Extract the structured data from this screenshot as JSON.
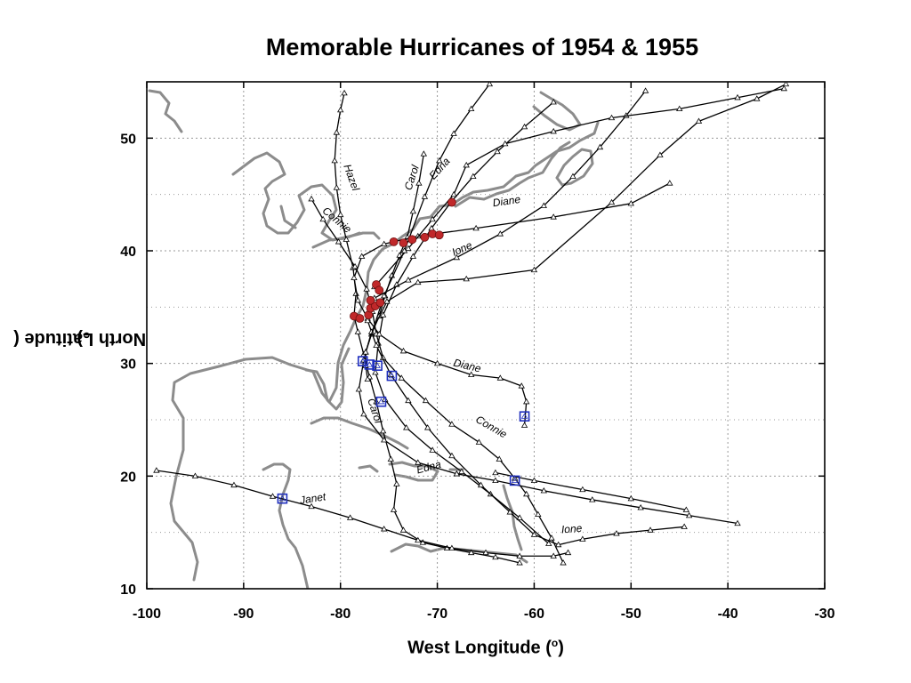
{
  "chart_data": {
    "type": "line",
    "title": "Memorable Hurricanes of 1954 & 1955",
    "xlabel_text": "West Longitude (",
    "xlabel_sup": "o",
    "xlabel_tail": ")",
    "ylabel_text": "North Latitude (",
    "ylabel_sup": "o",
    "ylabel_tail": ")",
    "xlim": [
      -100,
      -30
    ],
    "ylim": [
      10,
      55
    ],
    "x_ticks": [
      -100,
      -90,
      -80,
      -70,
      -60,
      -50,
      -40,
      -30
    ],
    "y_ticks": [
      10,
      20,
      30,
      40,
      50
    ],
    "grid": true,
    "colors": {
      "track": "#000000",
      "coast": "#8c8c8c",
      "landfall": "#c0282a",
      "origin": "#1f2fbf",
      "grid": "#9a9a9a"
    },
    "series": [
      {
        "name": "Hazel",
        "label_pos": [
          -79.2,
          46.4
        ],
        "label_rot": 70,
        "points": [
          [
            -61.5,
            12.3
          ],
          [
            -64,
            12.8
          ],
          [
            -66.5,
            13.2
          ],
          [
            -69,
            13.6
          ],
          [
            -71.5,
            14.1
          ],
          [
            -73.5,
            15.2
          ],
          [
            -74.5,
            17
          ],
          [
            -74.2,
            19.3
          ],
          [
            -74.8,
            21.5
          ],
          [
            -75.6,
            24
          ],
          [
            -76.3,
            26.6
          ],
          [
            -77,
            28.8
          ],
          [
            -77.6,
            30.8
          ],
          [
            -78.2,
            32.8
          ],
          [
            -78.6,
            34.2
          ],
          [
            -78.4,
            36.2
          ],
          [
            -78.7,
            38.5
          ],
          [
            -79.4,
            41
          ],
          [
            -80,
            43.2
          ],
          [
            -80.4,
            45.6
          ],
          [
            -80.6,
            48
          ],
          [
            -80.4,
            50.5
          ],
          [
            -80,
            52.5
          ],
          [
            -79.6,
            54
          ]
        ]
      },
      {
        "name": "Carol",
        "label_pos": [
          -72.3,
          46.4
        ],
        "label_rot": -72,
        "points": [
          [
            -77.2,
            28.6
          ],
          [
            -77.4,
            29.8
          ],
          [
            -77.4,
            31
          ],
          [
            -76.8,
            32.6
          ],
          [
            -76,
            34.2
          ],
          [
            -75.4,
            36
          ],
          [
            -74.7,
            37.8
          ],
          [
            -73.9,
            39.6
          ],
          [
            -73.1,
            41.2
          ],
          [
            -72.5,
            43.5
          ],
          [
            -71.9,
            46
          ],
          [
            -71.4,
            48.6
          ]
        ]
      },
      {
        "name": "Carol",
        "label_pos": [
          -76.8,
          25.7
        ],
        "label_rot": 72,
        "points": []
      },
      {
        "name": "Edna",
        "label_pos": [
          -69.5,
          47.1
        ],
        "label_rot": -48,
        "points": [
          [
            -58.5,
            14
          ],
          [
            -61.5,
            16.3
          ],
          [
            -64.5,
            18.4
          ],
          [
            -67.5,
            20.4
          ],
          [
            -70.5,
            22.3
          ],
          [
            -73.2,
            24.3
          ],
          [
            -75.4,
            26.8
          ],
          [
            -76.4,
            29.2
          ],
          [
            -76.1,
            31.8
          ],
          [
            -75.6,
            34.3
          ],
          [
            -74.2,
            37
          ],
          [
            -72.5,
            39.5
          ],
          [
            -70.6,
            42
          ],
          [
            -68.6,
            44.3
          ],
          [
            -66.3,
            46.6
          ],
          [
            -63.8,
            48.8
          ],
          [
            -61,
            51
          ],
          [
            -58,
            53.2
          ]
        ]
      },
      {
        "name": "Edna",
        "label_pos": [
          -70.8,
          20.5
        ],
        "label_rot": -15,
        "points": []
      },
      {
        "name": "Connie",
        "label_pos": [
          -80.6,
          42.5
        ],
        "label_rot": 40,
        "points": [
          [
            -57,
            12.3
          ],
          [
            -58.2,
            14.5
          ],
          [
            -59.6,
            16.6
          ],
          [
            -60.8,
            18.4
          ],
          [
            -62,
            19.8
          ],
          [
            -63.6,
            21.5
          ],
          [
            -65.7,
            23
          ],
          [
            -68.5,
            24.6
          ],
          [
            -71.2,
            26.7
          ],
          [
            -73.7,
            28.7
          ],
          [
            -75.6,
            30.5
          ],
          [
            -76.3,
            32.6
          ],
          [
            -76.7,
            34.6
          ],
          [
            -77.3,
            36.6
          ],
          [
            -78.5,
            38.6
          ],
          [
            -80.2,
            40.8
          ],
          [
            -81.8,
            42.8
          ],
          [
            -83,
            44.6
          ]
        ]
      },
      {
        "name": "Connie",
        "label_pos": [
          -64.6,
          24.1
        ],
        "label_rot": 30,
        "points": []
      },
      {
        "name": "Diane",
        "label_pos": [
          -62.8,
          44.1
        ],
        "label_rot": -8,
        "points": [
          [
            -61,
            24.5
          ],
          [
            -60.8,
            26.6
          ],
          [
            -61.3,
            28
          ],
          [
            -63.5,
            28.7
          ],
          [
            -66.5,
            29
          ],
          [
            -70,
            30
          ],
          [
            -73.5,
            31.1
          ],
          [
            -76,
            32.6
          ],
          [
            -77.2,
            34
          ],
          [
            -78.2,
            35.6
          ],
          [
            -78.6,
            37.6
          ],
          [
            -77.8,
            39.5
          ],
          [
            -75.5,
            40.6
          ],
          [
            -72,
            41.3
          ],
          [
            -66,
            42
          ],
          [
            -58,
            43
          ],
          [
            -50,
            44.2
          ],
          [
            -46,
            46
          ]
        ]
      },
      {
        "name": "Diane",
        "label_pos": [
          -67,
          29.5
        ],
        "label_rot": 14,
        "points": []
      },
      {
        "name": "Ione",
        "label_pos": [
          -67.3,
          39.9
        ],
        "label_rot": -24,
        "points": [
          [
            -44.5,
            15.5
          ],
          [
            -48,
            15.2
          ],
          [
            -51.5,
            14.9
          ],
          [
            -55,
            14.4
          ],
          [
            -57.5,
            13.9
          ],
          [
            -60,
            14.8
          ],
          [
            -62.5,
            16.8
          ],
          [
            -65.5,
            19.2
          ],
          [
            -68.5,
            21.8
          ],
          [
            -71,
            24.3
          ],
          [
            -73,
            26.7
          ],
          [
            -74.8,
            29
          ],
          [
            -76.3,
            31.6
          ],
          [
            -77.2,
            33.8
          ],
          [
            -76.5,
            35.8
          ],
          [
            -73,
            37.4
          ],
          [
            -68,
            39.4
          ],
          [
            -63.5,
            41.5
          ],
          [
            -59,
            44
          ],
          [
            -56,
            46.6
          ],
          [
            -53.2,
            49.2
          ],
          [
            -50.5,
            52
          ],
          [
            -48.5,
            54.2
          ]
        ]
      },
      {
        "name": "Ione",
        "label_pos": [
          -56.1,
          15
        ],
        "label_rot": -4,
        "points": []
      },
      {
        "name": "Janet",
        "label_pos": [
          -82.8,
          17.7
        ],
        "label_rot": -9,
        "points": [
          [
            -99,
            20.5
          ],
          [
            -95,
            20
          ],
          [
            -91,
            19.2
          ],
          [
            -87,
            18.2
          ],
          [
            -83,
            17.3
          ],
          [
            -79,
            16.3
          ],
          [
            -75.5,
            15.3
          ],
          [
            -72,
            14.3
          ],
          [
            -68.5,
            13.6
          ],
          [
            -65,
            13.2
          ],
          [
            -61.5,
            12.9
          ],
          [
            -58,
            12.9
          ],
          [
            -56.5,
            13.2
          ]
        ]
      },
      {
        "name": "",
        "label_pos": [
          0,
          0
        ],
        "label_rot": 0,
        "points": [
          [
            -39,
            15.8
          ],
          [
            -44,
            16.5
          ],
          [
            -49,
            17.2
          ],
          [
            -54,
            17.9
          ],
          [
            -59,
            18.7
          ],
          [
            -64,
            19.6
          ],
          [
            -68,
            20.2
          ]
        ]
      },
      {
        "name": "",
        "label_pos": [
          0,
          0
        ],
        "label_rot": 0,
        "points": [
          [
            -68,
            20.2
          ],
          [
            -72,
            21.2
          ],
          [
            -75.5,
            23.2
          ],
          [
            -77.6,
            25.5
          ],
          [
            -78.1,
            27.7
          ],
          [
            -77.6,
            30.3
          ],
          [
            -76.8,
            32.8
          ],
          [
            -75.2,
            35.5
          ],
          [
            -72,
            37.2
          ],
          [
            -67,
            37.5
          ],
          [
            -60,
            38.3
          ],
          [
            -52,
            44.3
          ],
          [
            -47,
            48.5
          ],
          [
            -43,
            51.5
          ],
          [
            -37,
            53.5
          ],
          [
            -34,
            54.8
          ]
        ]
      },
      {
        "name": "",
        "label_pos": [
          0,
          0
        ],
        "label_rot": 0,
        "points": [
          [
            -44.3,
            17
          ],
          [
            -50,
            18
          ],
          [
            -55,
            18.8
          ],
          [
            -60,
            19.6
          ],
          [
            -64,
            20.3
          ]
        ]
      },
      {
        "name": "",
        "label_pos": [
          0,
          0
        ],
        "label_rot": 0,
        "points": [
          [
            -76.5,
            36.8
          ],
          [
            -73,
            40.2
          ],
          [
            -70.5,
            42.8
          ],
          [
            -68.3,
            45
          ],
          [
            -67,
            47.6
          ],
          [
            -63,
            49.5
          ],
          [
            -58,
            50.6
          ],
          [
            -52,
            51.8
          ],
          [
            -45,
            52.6
          ],
          [
            -39,
            53.6
          ],
          [
            -34.2,
            54.4
          ]
        ]
      },
      {
        "name": "",
        "label_pos": [
          0,
          0
        ],
        "label_rot": 0,
        "points": [
          [
            -77.4,
            31
          ],
          [
            -75.5,
            36
          ],
          [
            -73.4,
            40
          ],
          [
            -71.3,
            44.8
          ],
          [
            -69.8,
            48
          ],
          [
            -68.3,
            50.4
          ],
          [
            -66.5,
            52.6
          ],
          [
            -64.6,
            54.8
          ]
        ]
      }
    ],
    "landfall_points": [
      [
        -78.6,
        34.2
      ],
      [
        -78,
        34
      ],
      [
        -77.1,
        34.3
      ],
      [
        -76.9,
        34.9
      ],
      [
        -76.4,
        35.1
      ],
      [
        -75.9,
        35.4
      ],
      [
        -76.3,
        37
      ],
      [
        -76,
        36.5
      ],
      [
        -76.9,
        35.6
      ],
      [
        -73.5,
        40.7
      ],
      [
        -72.6,
        41
      ],
      [
        -71.3,
        41.2
      ],
      [
        -70.5,
        41.5
      ],
      [
        -69.8,
        41.4
      ],
      [
        -68.5,
        44.3
      ],
      [
        -74.5,
        40.8
      ]
    ],
    "origin_points": [
      [
        -86,
        18
      ],
      [
        -77.7,
        30.2
      ],
      [
        -77,
        29.9
      ],
      [
        -76.2,
        29.8
      ],
      [
        -74.7,
        28.9
      ],
      [
        -75.8,
        26.6
      ],
      [
        -61,
        25.3
      ],
      [
        -62,
        19.6
      ]
    ]
  }
}
